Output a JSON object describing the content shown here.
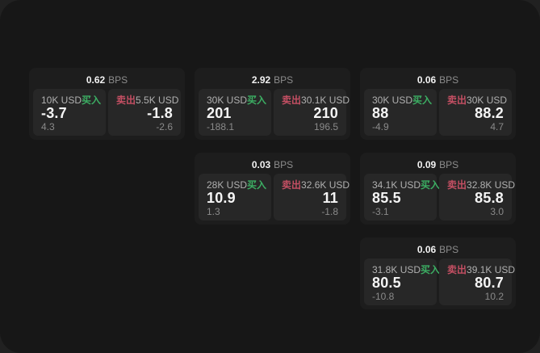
{
  "labels": {
    "buy": "买入",
    "sell": "卖出",
    "unit": "BPS"
  },
  "colors": {
    "buy_green": "#3cae63",
    "sell_red": "#c44f63",
    "backdrop": "#212121",
    "surface": "#171717",
    "card": "#1d1d1d",
    "panel": "#272727"
  },
  "cards": [
    {
      "bps": "0.62",
      "buy": {
        "amount": "10K USD",
        "price": "-3.7",
        "delta": "4.3"
      },
      "sell": {
        "amount": "5.5K USD",
        "price": "-1.8",
        "delta": "-2.6"
      }
    },
    {
      "bps": "2.92",
      "buy": {
        "amount": "30K USD",
        "price": "201",
        "delta": "-188.1"
      },
      "sell": {
        "amount": "30.1K USD",
        "price": "210",
        "delta": "196.5"
      }
    },
    {
      "bps": "0.06",
      "buy": {
        "amount": "30K USD",
        "price": "88",
        "delta": "-4.9"
      },
      "sell": {
        "amount": "30K USD",
        "price": "88.2",
        "delta": "4.7"
      }
    },
    {
      "bps": "0.03",
      "buy": {
        "amount": "28K USD",
        "price": "10.9",
        "delta": "1.3"
      },
      "sell": {
        "amount": "32.6K USD",
        "price": "11",
        "delta": "-1.8"
      }
    },
    {
      "bps": "0.09",
      "buy": {
        "amount": "34.1K USD",
        "price": "85.5",
        "delta": "-3.1"
      },
      "sell": {
        "amount": "32.8K USD",
        "price": "85.8",
        "delta": "3.0"
      }
    },
    {
      "bps": "0.06",
      "buy": {
        "amount": "31.8K USD",
        "price": "80.5",
        "delta": "-10.8"
      },
      "sell": {
        "amount": "39.1K USD",
        "price": "80.7",
        "delta": "10.2"
      }
    }
  ]
}
